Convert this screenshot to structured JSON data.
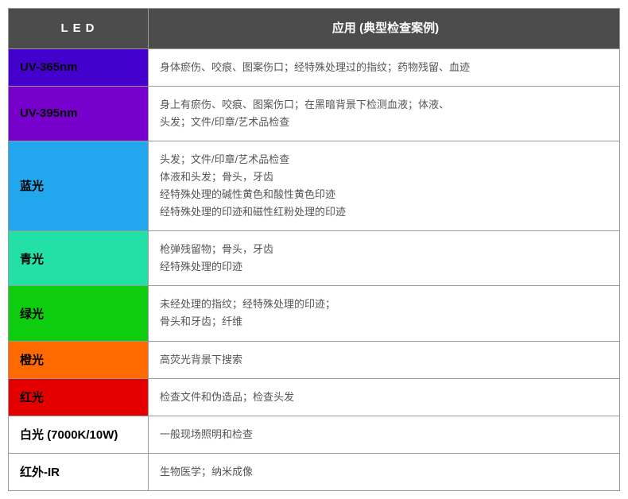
{
  "header": {
    "led_label": "LED",
    "app_label": "应用 (典型检查案例)",
    "led_bg": "#4c4c4c",
    "app_bg": "#4c4c4c",
    "text_color": "#ffffff"
  },
  "rows": [
    {
      "led": "UV-365nm",
      "led_bg": "#4400cc",
      "led_text_color": "#000000",
      "apps": [
        "身体瘀伤、咬痕、图案伤口；经特殊处理过的指纹；药物残留、血迹"
      ]
    },
    {
      "led": "UV-395nm",
      "led_bg": "#7700cc",
      "led_text_color": "#000000",
      "apps": [
        "身上有瘀伤、咬痕、图案伤口；在黑暗背景下检测血液；体液、",
        "头发；文件/印章/艺术品检查"
      ]
    },
    {
      "led": "蓝光",
      "led_bg": "#22a6ee",
      "led_text_color": "#000000",
      "apps": [
        "头发；文件/印章/艺术品检查",
        "体液和头发；骨头，牙齿",
        "经特殊处理的碱性黄色和酸性黄色印迹",
        "经特殊处理的印迹和磁性红粉处理的印迹"
      ]
    },
    {
      "led": "青光",
      "led_bg": "#22e0a6",
      "led_text_color": "#000000",
      "apps": [
        "枪弹残留物；骨头，牙齿",
        "经特殊处理的印迹"
      ]
    },
    {
      "led": "绿光",
      "led_bg": "#0ecc0e",
      "led_text_color": "#000000",
      "apps": [
        "未经处理的指纹；经特殊处理的印迹；",
        "骨头和牙齿；纤维"
      ]
    },
    {
      "led": "橙光",
      "led_bg": "#ff6a00",
      "led_text_color": "#000000",
      "apps": [
        "高荧光背景下搜索"
      ]
    },
    {
      "led": "红光",
      "led_bg": "#e50000",
      "led_text_color": "#000000",
      "apps": [
        "检查文件和伪造品；检查头发"
      ]
    },
    {
      "led": "白光 (7000K/10W)",
      "led_bg": "#ffffff",
      "led_text_color": "#000000",
      "apps": [
        "一般现场照明和检查"
      ]
    },
    {
      "led": "红外-IR",
      "led_bg": "#ffffff",
      "led_text_color": "#000000",
      "apps": [
        "生物医学；纳米成像"
      ]
    }
  ],
  "border_color": "#999999",
  "app_text_color": "#555555"
}
